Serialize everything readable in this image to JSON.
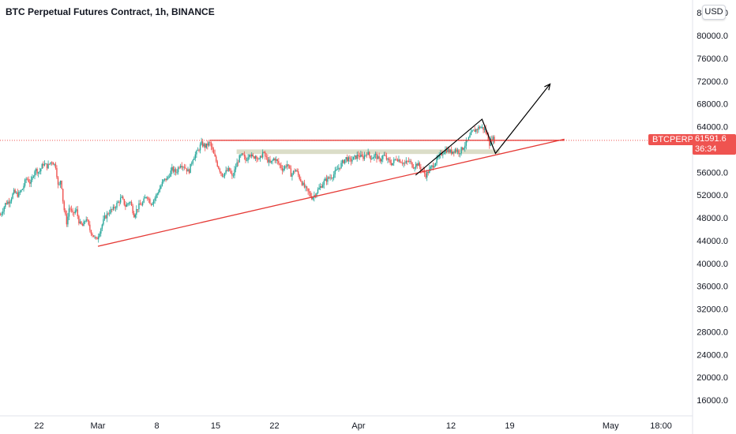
{
  "header": {
    "title": "BTC Perpetual Futures Contract, 1h, BINANCE",
    "currency": "USD"
  },
  "colors": {
    "up": "#26a69a",
    "down": "#ef5350",
    "trendline": "#e53935",
    "zone": "#d7d9c2",
    "annotation": "#000000",
    "axis_text": "#131722"
  },
  "price_tag": {
    "symbol": "BTCPERP",
    "price": "61591.6",
    "countdown": "36:34"
  },
  "chart_data": {
    "type": "line",
    "title": "BTC Perpetual Futures Contract, 1h, BINANCE",
    "xlabel": "",
    "ylabel": "",
    "ylim": [
      13500,
      86000
    ],
    "grid": false,
    "y_ticks": [
      "16000.0",
      "20000.0",
      "24000.0",
      "28000.0",
      "32000.0",
      "36000.0",
      "40000.0",
      "44000.0",
      "48000.0",
      "52000.0",
      "56000.0",
      "60000.0",
      "64000.0",
      "68000.0",
      "72000.0",
      "76000.0",
      "80000.0",
      "84000.0"
    ],
    "x_ticks": [
      {
        "label": "22",
        "day": -7
      },
      {
        "label": "Mar",
        "day": 0
      },
      {
        "label": "8",
        "day": 7
      },
      {
        "label": "15",
        "day": 14
      },
      {
        "label": "22",
        "day": 21
      },
      {
        "label": "Apr",
        "day": 31
      },
      {
        "label": "12",
        "day": 42
      },
      {
        "label": "19",
        "day": 49
      },
      {
        "label": "May",
        "day": 61
      },
      {
        "label": "18:00",
        "day": 67
      }
    ],
    "series": [
      {
        "name": "BTCPERP",
        "points": [
          [
            -11.6,
            48500
          ],
          [
            -11,
            50500
          ],
          [
            -10.5,
            51000
          ],
          [
            -10,
            52500
          ],
          [
            -9.5,
            52000
          ],
          [
            -9,
            53000
          ],
          [
            -8.5,
            55000
          ],
          [
            -8,
            54000
          ],
          [
            -7.5,
            56500
          ],
          [
            -7,
            56000
          ],
          [
            -6.5,
            57500
          ],
          [
            -6,
            57000
          ],
          [
            -5.5,
            58000
          ],
          [
            -5,
            57000
          ],
          [
            -4.7,
            53000
          ],
          [
            -4.4,
            55000
          ],
          [
            -4.1,
            50000
          ],
          [
            -3.7,
            47000
          ],
          [
            -3.4,
            50000
          ],
          [
            -3,
            48500
          ],
          [
            -2.6,
            49500
          ],
          [
            -2.2,
            47000
          ],
          [
            -1.8,
            46500
          ],
          [
            -1.4,
            48000
          ],
          [
            -1,
            46000
          ],
          [
            -0.6,
            45000
          ],
          [
            -0.2,
            44000
          ],
          [
            0.3,
            46000
          ],
          [
            0.8,
            48000
          ],
          [
            1.3,
            49000
          ],
          [
            1.8,
            49500
          ],
          [
            2.3,
            50500
          ],
          [
            2.8,
            51500
          ],
          [
            3.3,
            50000
          ],
          [
            3.8,
            51000
          ],
          [
            4.3,
            48500
          ],
          [
            4.8,
            50000
          ],
          [
            5.3,
            50500
          ],
          [
            5.8,
            52000
          ],
          [
            6.3,
            50500
          ],
          [
            6.8,
            51500
          ],
          [
            7.3,
            53000
          ],
          [
            7.8,
            54500
          ],
          [
            8.3,
            55000
          ],
          [
            8.8,
            56500
          ],
          [
            9.3,
            56000
          ],
          [
            9.8,
            57500
          ],
          [
            10.3,
            57000
          ],
          [
            10.8,
            56000
          ],
          [
            11.3,
            58500
          ],
          [
            11.8,
            59500
          ],
          [
            12.3,
            61000
          ],
          [
            12.8,
            60500
          ],
          [
            13.3,
            61200
          ],
          [
            13.8,
            59000
          ],
          [
            14.3,
            57000
          ],
          [
            14.8,
            55500
          ],
          [
            15.2,
            56000
          ],
          [
            15.6,
            56500
          ],
          [
            16,
            55000
          ],
          [
            16.4,
            57000
          ],
          [
            16.8,
            58500
          ],
          [
            17.2,
            59000
          ],
          [
            17.6,
            58000
          ],
          [
            18,
            59500
          ],
          [
            18.4,
            58500
          ],
          [
            18.8,
            59000
          ],
          [
            19.2,
            58000
          ],
          [
            19.6,
            59500
          ],
          [
            20,
            58500
          ],
          [
            20.5,
            57500
          ],
          [
            21,
            58500
          ],
          [
            21.5,
            57500
          ],
          [
            22,
            56500
          ],
          [
            22.5,
            57500
          ],
          [
            23,
            55500
          ],
          [
            23.5,
            56500
          ],
          [
            24,
            55000
          ],
          [
            24.5,
            53500
          ],
          [
            25,
            52500
          ],
          [
            25.5,
            51500
          ],
          [
            26,
            52500
          ],
          [
            26.5,
            53500
          ],
          [
            27,
            54500
          ],
          [
            27.5,
            55000
          ],
          [
            28,
            55500
          ],
          [
            28.5,
            56500
          ],
          [
            29,
            57500
          ],
          [
            29.5,
            58500
          ],
          [
            30,
            58000
          ],
          [
            30.5,
            58500
          ],
          [
            31,
            59000
          ],
          [
            31.5,
            58500
          ],
          [
            32,
            59500
          ],
          [
            32.5,
            58500
          ],
          [
            33,
            59000
          ],
          [
            33.5,
            58000
          ],
          [
            34,
            59000
          ],
          [
            34.5,
            58000
          ],
          [
            35,
            57500
          ],
          [
            35.5,
            58500
          ],
          [
            36,
            58000
          ],
          [
            36.5,
            57500
          ],
          [
            37,
            58000
          ],
          [
            37.5,
            57000
          ],
          [
            38,
            57500
          ],
          [
            38.5,
            56500
          ],
          [
            39,
            55500
          ],
          [
            39.5,
            56500
          ],
          [
            40,
            57500
          ],
          [
            40.5,
            58500
          ],
          [
            41,
            59500
          ],
          [
            41.5,
            60000
          ],
          [
            42,
            59500
          ],
          [
            42.5,
            60000
          ],
          [
            43,
            59500
          ],
          [
            43.5,
            60500
          ],
          [
            44,
            61500
          ],
          [
            44.5,
            63000
          ],
          [
            45,
            63500
          ],
          [
            45.5,
            64000
          ],
          [
            46,
            63500
          ],
          [
            46.3,
            62500
          ],
          [
            46.6,
            61000
          ],
          [
            46.9,
            62000
          ],
          [
            47.2,
            61600
          ]
        ]
      }
    ],
    "annotations": [
      {
        "kind": "resistance",
        "from": [
          13.3,
          61600
        ],
        "to": [
          55.5,
          61600
        ]
      },
      {
        "kind": "rising-support",
        "from": [
          0,
          43000
        ],
        "to": [
          55.5,
          61800
        ]
      },
      {
        "kind": "zone",
        "from": [
          16.5,
          59200
        ],
        "to": [
          47.8,
          60000
        ]
      },
      {
        "kind": "projection",
        "points": [
          [
            37.8,
            55500
          ],
          [
            45.7,
            65300
          ],
          [
            47.3,
            59300
          ],
          [
            53.8,
            71500
          ]
        ]
      }
    ],
    "last_price": 61591.6
  }
}
